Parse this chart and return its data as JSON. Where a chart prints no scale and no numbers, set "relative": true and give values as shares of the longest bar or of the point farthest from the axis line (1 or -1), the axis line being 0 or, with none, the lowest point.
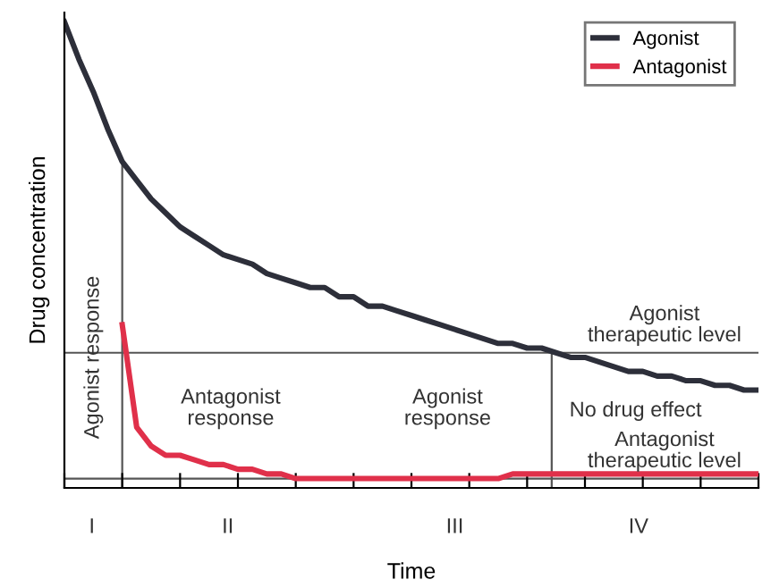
{
  "chart_data": {
    "type": "line",
    "relative": true,
    "xlabel": "Time",
    "ylabel": "Drug concentration",
    "legend": "top right",
    "tick_labels": false,
    "categories": [
      null,
      null,
      null,
      null,
      null,
      null,
      null,
      null,
      null,
      null,
      null,
      null,
      null,
      null,
      null,
      null,
      null,
      null,
      null,
      null,
      null,
      null,
      null,
      null,
      null,
      null,
      null,
      null,
      null,
      null,
      null,
      null,
      null,
      null,
      null,
      null,
      null,
      null,
      null,
      null,
      null,
      null,
      null,
      null,
      null,
      null,
      null,
      null,
      null
    ],
    "series": [
      {
        "name": "Agonist",
        "color": "#2d2f3a",
        "values": [
          1.0,
          0.92,
          0.85,
          0.77,
          0.7,
          0.66,
          0.62,
          0.59,
          0.56,
          0.54,
          0.52,
          0.5,
          0.49,
          0.48,
          0.46,
          0.45,
          0.44,
          0.43,
          0.43,
          0.41,
          0.41,
          0.39,
          0.39,
          0.38,
          0.37,
          0.36,
          0.35,
          0.34,
          0.33,
          0.32,
          0.31,
          0.31,
          0.3,
          0.3,
          0.29,
          0.28,
          0.28,
          0.27,
          0.26,
          0.25,
          0.25,
          0.24,
          0.24,
          0.23,
          0.23,
          0.22,
          0.22,
          0.21,
          0.21
        ]
      },
      {
        "name": "Antagonist",
        "color": "#e0304a",
        "values": [
          null,
          null,
          null,
          null,
          0.35,
          0.13,
          0.09,
          0.07,
          0.07,
          0.06,
          0.05,
          0.05,
          0.04,
          0.04,
          0.03,
          0.03,
          0.02,
          0.02,
          0.02,
          0.02,
          0.02,
          0.02,
          0.02,
          0.02,
          0.02,
          0.02,
          0.02,
          0.02,
          0.02,
          0.02,
          0.02,
          0.03,
          0.03,
          0.03,
          0.03,
          0.03,
          0.03,
          0.03,
          0.03,
          0.03,
          0.03,
          0.03,
          0.03,
          0.03,
          0.03,
          0.03,
          0.03,
          0.03,
          0.03
        ]
      }
    ],
    "ref_lines": [
      {
        "axis": "y",
        "value": 0.29,
        "label": "Agonist\ntherapeutic level",
        "color": "#555555"
      },
      {
        "axis": "y",
        "value": 0.02,
        "label": "Antagonist\ntherapeutic level",
        "color": "#555555"
      }
    ],
    "annotations": [
      "Agonist response",
      "Antagonist\nresponse",
      "Agonist\nresponse",
      "No drug effect",
      "I",
      "II",
      "III",
      "IV"
    ]
  }
}
